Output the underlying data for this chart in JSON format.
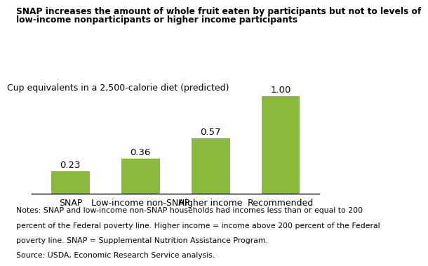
{
  "categories": [
    "SNAP",
    "Low-income non-SNAP",
    "Higher income",
    "Recommended"
  ],
  "values": [
    0.23,
    0.36,
    0.57,
    1.0
  ],
  "bar_color": "#8aba3b",
  "title_line1": "SNAP increases the amount of whole fruit eaten by participants but not to levels of",
  "title_line2": "low-income nonparticipants or higher income participants",
  "ylabel_text": "Cup equivalents in a 2,500-calorie diet (predicted)",
  "ylim": [
    0,
    1.18
  ],
  "bar_labels": [
    "0.23",
    "0.36",
    "0.57",
    "1.00"
  ],
  "notes_line1": "Notes: SNAP and low-income non-SNAP households had incomes less than or equal to 200",
  "notes_line2": "percent of the Federal poverty line. Higher income = income above 200 percent of the Federal",
  "notes_line3": "poverty line. SNAP = Supplemental Nutrition Assistance Program.",
  "notes_line4": "Source: USDA, Economic Research Service analysis.",
  "title_fontsize": 8.8,
  "label_fontsize": 9.0,
  "bar_label_fontsize": 9.5,
  "notes_fontsize": 7.8,
  "ylabel_fontsize": 9.0,
  "background_color": "#ffffff"
}
